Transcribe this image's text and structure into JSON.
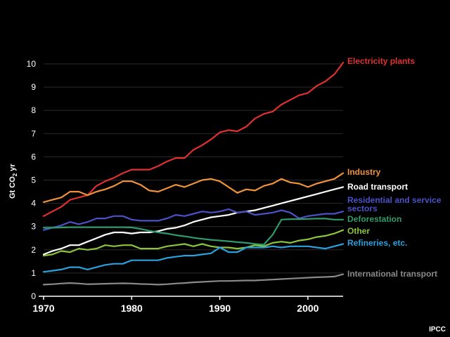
{
  "chart_data": {
    "type": "line",
    "title": "",
    "xlabel": "",
    "ylabel": "Gt CO₂ yr",
    "ylabel_parts": {
      "prefix": "Gt CO",
      "sub": "2",
      "suffix": " yr"
    },
    "xlim": [
      1970,
      2004
    ],
    "ylim": [
      0,
      10
    ],
    "xticks": [
      1970,
      1980,
      1990,
      2000
    ],
    "yticks": [
      0,
      1,
      2,
      3,
      4,
      5,
      6,
      7,
      8,
      9,
      10
    ],
    "grid": true,
    "credit": "IPCC",
    "x": [
      1970,
      1971,
      1972,
      1973,
      1974,
      1975,
      1976,
      1977,
      1978,
      1979,
      1980,
      1981,
      1982,
      1983,
      1984,
      1985,
      1986,
      1987,
      1988,
      1989,
      1990,
      1991,
      1992,
      1993,
      1994,
      1995,
      1996,
      1997,
      1998,
      1999,
      2000,
      2001,
      2002,
      2003,
      2004
    ],
    "series": [
      {
        "name": "Electricity plants",
        "color": "#e03030",
        "values": [
          3.45,
          3.65,
          3.85,
          4.15,
          4.25,
          4.35,
          4.75,
          4.95,
          5.1,
          5.3,
          5.45,
          5.45,
          5.45,
          5.6,
          5.8,
          5.95,
          5.95,
          6.3,
          6.5,
          6.75,
          7.05,
          7.15,
          7.1,
          7.3,
          7.65,
          7.85,
          7.95,
          8.25,
          8.45,
          8.65,
          8.75,
          9.05,
          9.25,
          9.55,
          10.05
        ]
      },
      {
        "name": "Industry",
        "color": "#f0923a",
        "values": [
          4.05,
          4.15,
          4.25,
          4.5,
          4.5,
          4.35,
          4.5,
          4.6,
          4.75,
          4.95,
          4.95,
          4.8,
          4.55,
          4.5,
          4.65,
          4.8,
          4.7,
          4.85,
          5.0,
          5.05,
          4.95,
          4.7,
          4.45,
          4.6,
          4.55,
          4.75,
          4.85,
          5.05,
          4.9,
          4.85,
          4.7,
          4.85,
          4.95,
          5.05,
          5.3
        ]
      },
      {
        "name": "Road transport",
        "color": "#ffffff",
        "values": [
          1.8,
          1.95,
          2.05,
          2.2,
          2.2,
          2.35,
          2.5,
          2.65,
          2.75,
          2.75,
          2.7,
          2.75,
          2.75,
          2.8,
          2.9,
          2.95,
          3.05,
          3.2,
          3.3,
          3.4,
          3.45,
          3.5,
          3.6,
          3.65,
          3.7,
          3.8,
          3.9,
          4.0,
          4.1,
          4.2,
          4.3,
          4.4,
          4.5,
          4.6,
          4.7
        ]
      },
      {
        "name": "Residential and service sectors",
        "color": "#4a52c8",
        "values": [
          2.85,
          2.95,
          3.05,
          3.2,
          3.1,
          3.2,
          3.35,
          3.35,
          3.45,
          3.45,
          3.3,
          3.25,
          3.25,
          3.25,
          3.35,
          3.5,
          3.45,
          3.55,
          3.65,
          3.6,
          3.65,
          3.75,
          3.6,
          3.65,
          3.5,
          3.55,
          3.6,
          3.7,
          3.6,
          3.35,
          3.45,
          3.5,
          3.55,
          3.55,
          3.65
        ]
      },
      {
        "name": "Deforestation",
        "color": "#2f9a6b",
        "values": [
          2.95,
          2.95,
          2.96,
          2.97,
          2.97,
          2.97,
          2.97,
          2.97,
          2.97,
          2.97,
          2.96,
          2.9,
          2.82,
          2.75,
          2.7,
          2.63,
          2.58,
          2.52,
          2.47,
          2.43,
          2.4,
          2.37,
          2.33,
          2.3,
          2.25,
          2.22,
          2.65,
          3.3,
          3.32,
          3.32,
          3.33,
          3.34,
          3.34,
          3.3,
          3.3
        ]
      },
      {
        "name": "Other",
        "color": "#8cc43e",
        "values": [
          1.75,
          1.8,
          1.95,
          1.9,
          2.05,
          2.0,
          2.05,
          2.2,
          2.15,
          2.2,
          2.2,
          2.05,
          2.05,
          2.05,
          2.15,
          2.2,
          2.25,
          2.15,
          2.25,
          2.15,
          2.1,
          2.1,
          2.05,
          2.1,
          2.2,
          2.15,
          2.3,
          2.35,
          2.3,
          2.4,
          2.45,
          2.55,
          2.6,
          2.7,
          2.85
        ]
      },
      {
        "name": "Refineries, etc.",
        "color": "#2aa0dc",
        "values": [
          1.05,
          1.1,
          1.15,
          1.25,
          1.25,
          1.15,
          1.25,
          1.35,
          1.4,
          1.4,
          1.55,
          1.55,
          1.55,
          1.55,
          1.65,
          1.7,
          1.75,
          1.75,
          1.8,
          1.85,
          2.1,
          1.9,
          1.9,
          2.1,
          2.1,
          2.1,
          2.15,
          2.1,
          2.15,
          2.15,
          2.15,
          2.1,
          2.05,
          2.15,
          2.25
        ]
      },
      {
        "name": "International transport",
        "color": "#8a8a8a",
        "values": [
          0.5,
          0.52,
          0.55,
          0.57,
          0.55,
          0.52,
          0.53,
          0.54,
          0.55,
          0.56,
          0.55,
          0.53,
          0.52,
          0.5,
          0.52,
          0.55,
          0.57,
          0.6,
          0.62,
          0.64,
          0.66,
          0.66,
          0.67,
          0.68,
          0.68,
          0.7,
          0.72,
          0.74,
          0.76,
          0.78,
          0.8,
          0.82,
          0.83,
          0.85,
          0.95
        ]
      }
    ]
  }
}
